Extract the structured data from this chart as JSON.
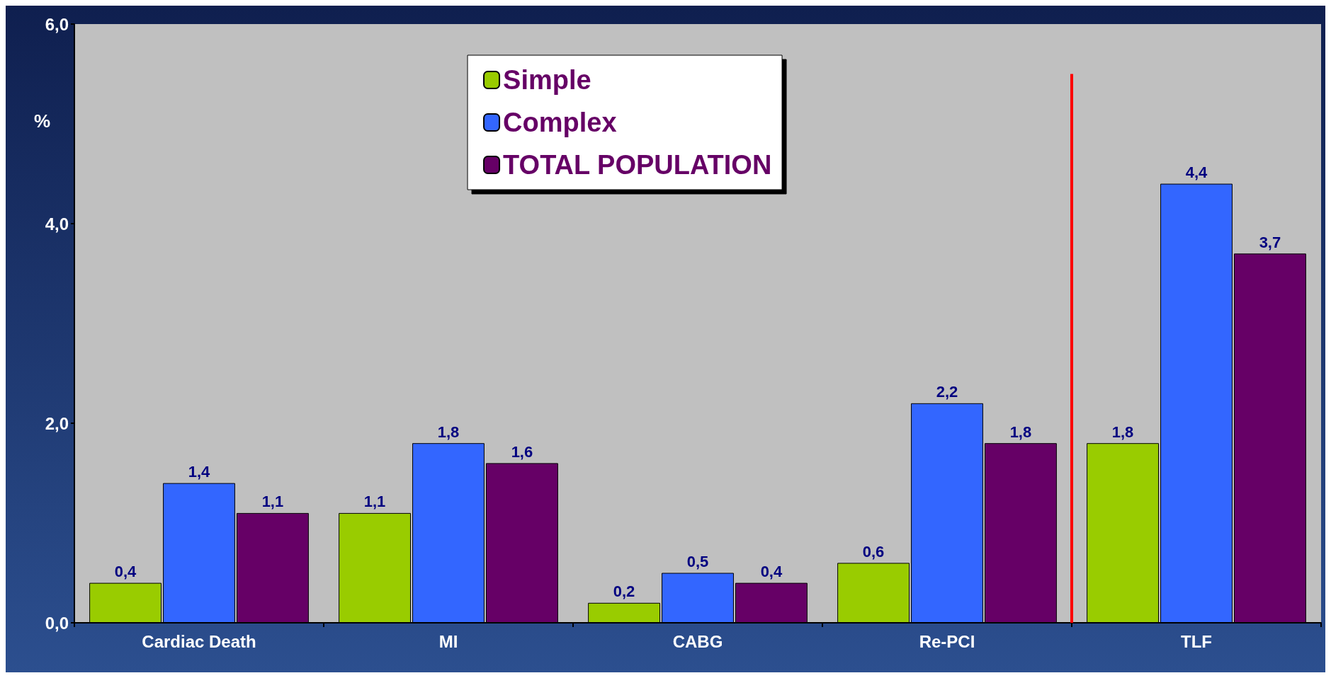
{
  "chart_data": {
    "type": "bar",
    "ylabel": "%",
    "categories": [
      "Cardiac Death",
      "MI",
      "CABG",
      "Re-PCI",
      "TLF"
    ],
    "series": [
      {
        "name": "Simple",
        "color": "#99cc00",
        "values": [
          0.4,
          1.1,
          0.2,
          0.6,
          1.8
        ],
        "value_labels": [
          "0,4",
          "1,1",
          "0,2",
          "0,6",
          "1,8"
        ]
      },
      {
        "name": "Complex",
        "color": "#3366ff",
        "values": [
          1.4,
          1.8,
          0.5,
          2.2,
          4.4
        ],
        "value_labels": [
          "1,4",
          "1,8",
          "0,5",
          "2,2",
          "4,4"
        ]
      },
      {
        "name": "TOTAL POPULATION",
        "color": "#660066",
        "values": [
          1.1,
          1.6,
          0.4,
          1.8,
          3.7
        ],
        "value_labels": [
          "1,1",
          "1,6",
          "0,4",
          "1,8",
          "3,7"
        ]
      }
    ],
    "ylim": [
      0,
      6
    ],
    "yticks": [
      {
        "value": 0,
        "label": "0,0"
      },
      {
        "value": 2,
        "label": "2,0"
      },
      {
        "value": 4,
        "label": "4,0"
      },
      {
        "value": 6,
        "label": "6,0"
      }
    ],
    "grid": false,
    "legend": "top",
    "ref_lines": [
      {
        "axis": "x",
        "value": "TLF",
        "color": "#ff0000"
      }
    ]
  }
}
